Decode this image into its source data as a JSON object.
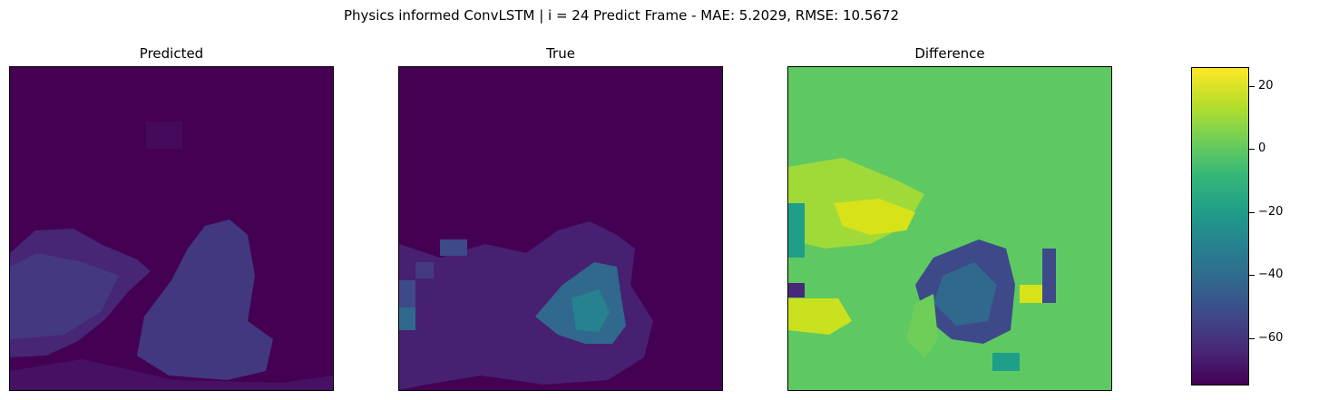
{
  "suptitle": "Physics informed ConvLSTM | i = 24 Predict Frame - MAE: 5.2029, RMSE: 10.5672",
  "chart_data": [
    {
      "type": "heatmap",
      "title": "Predicted",
      "grid_size": [
        40,
        40
      ],
      "colormap": "viridis",
      "value_range": [
        0,
        26
      ],
      "background_value": 0,
      "regions": [
        {
          "label": "left plume",
          "mean_value": 4
        },
        {
          "label": "center blob",
          "mean_value": 4
        },
        {
          "label": "lower band",
          "mean_value": 2
        }
      ],
      "axes_visible": false
    },
    {
      "type": "heatmap",
      "title": "True",
      "grid_size": [
        40,
        40
      ],
      "colormap": "viridis",
      "value_range": [
        0,
        26
      ],
      "background_value": 0,
      "regions": [
        {
          "label": "left edge",
          "mean_value": 8
        },
        {
          "label": "center core",
          "mean_value": 22
        },
        {
          "label": "scattered cells",
          "mean_value": 6
        }
      ],
      "axes_visible": false
    },
    {
      "type": "heatmap",
      "title": "Difference",
      "grid_size": [
        40,
        40
      ],
      "colormap": "viridis",
      "value_range": [
        -75,
        26
      ],
      "background_value": 2,
      "regions": [
        {
          "label": "upper-left band",
          "mean_value": 22
        },
        {
          "label": "center trough",
          "mean_value": -55
        },
        {
          "label": "lower-left band",
          "mean_value": 20
        }
      ],
      "axes_visible": false
    }
  ],
  "colorbar": {
    "colormap": "viridis",
    "range": [
      -75,
      26
    ],
    "ticks": [
      20,
      0,
      -20,
      -40,
      -60
    ],
    "tick_labels": [
      "20",
      "0",
      "−20",
      "−40",
      "−60"
    ]
  }
}
